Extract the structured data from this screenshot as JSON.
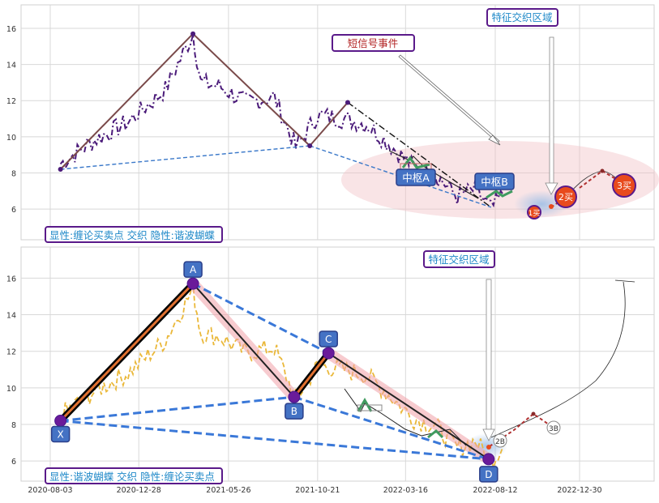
{
  "chart_data": [
    {
      "type": "line",
      "panel": "top",
      "ylim": [
        4.3,
        17.3
      ],
      "yticks": [
        "6",
        "8",
        "10",
        "12",
        "14",
        "16"
      ],
      "grid": true,
      "series": [
        {
          "name": "",
          "style": "dash-dot",
          "color": "#4b1b7a",
          "x": [
            "2020-08-20",
            "2020-10-15",
            "2020-12-10",
            "2021-02-10",
            "2021-03-28",
            "2021-04-10",
            "2021-05-10",
            "2021-06-25",
            "2021-08-10",
            "2021-09-15",
            "2021-10-21",
            "2021-11-30",
            "2022-01-10",
            "2022-02-20",
            "2022-03-30",
            "2022-05-05",
            "2022-06-10",
            "2022-07-10",
            "2022-08-05",
            "2022-08-25"
          ],
          "y": [
            8.5,
            9.8,
            10.8,
            12.6,
            15.7,
            13.0,
            12.8,
            11.9,
            12.2,
            9.4,
            11.2,
            11.0,
            10.7,
            9.5,
            8.3,
            7.9,
            6.7,
            7.1,
            6.0,
            6.8
          ]
        }
      ],
      "pivot_lines": [
        {
          "x": [
            "2020-08-20",
            "2021-03-28"
          ],
          "y": [
            8.2,
            15.7
          ],
          "color": "#7a4a4a",
          "style": "solid"
        },
        {
          "x": [
            "2021-03-28",
            "2021-10-08"
          ],
          "y": [
            15.7,
            9.5
          ],
          "color": "#7a4a4a",
          "style": "solid"
        },
        {
          "x": [
            "2021-10-08",
            "2021-12-10"
          ],
          "y": [
            9.5,
            11.9
          ],
          "color": "#7a4a4a",
          "style": "solid"
        },
        {
          "x": [
            "2021-12-10",
            "2022-08-05"
          ],
          "y": [
            11.9,
            6.1
          ],
          "color": "#111111",
          "style": "dash-dot"
        },
        {
          "x": [
            "2020-08-20",
            "2021-10-08"
          ],
          "y": [
            8.2,
            9.5
          ],
          "color": "#3a78c9",
          "style": "dashed"
        },
        {
          "x": [
            "2021-10-08",
            "2022-08-05"
          ],
          "y": [
            9.5,
            6.1
          ],
          "color": "#3a78c9",
          "style": "dashed"
        }
      ],
      "labels": [
        "中枢A",
        "中枢B",
        "1买",
        "2买",
        "3买"
      ],
      "annotations": [
        "短信号事件",
        "特征交织区域"
      ],
      "caption": "显性:缠论买卖点 交织 隐性:谐波蝴蝶"
    },
    {
      "type": "line",
      "panel": "bottom",
      "ylim": [
        4.9,
        17.7
      ],
      "yticks": [
        "6",
        "8",
        "10",
        "12",
        "14",
        "16"
      ],
      "xtick_labels": [
        "2020-08-03",
        "2020-12-28",
        "2021-05-26",
        "2021-10-21",
        "2022-03-16",
        "2022-08-12",
        "2022-12-30"
      ],
      "grid": true,
      "series": [
        {
          "name": "",
          "style": "dashed",
          "color": "#eab83a",
          "x": [
            "2020-08-20",
            "2020-10-15",
            "2020-12-10",
            "2021-02-10",
            "2021-03-28",
            "2021-04-10",
            "2021-05-10",
            "2021-06-25",
            "2021-08-10",
            "2021-09-15",
            "2021-10-21",
            "2021-11-30",
            "2022-01-10",
            "2022-02-20",
            "2022-03-30",
            "2022-05-05",
            "2022-06-10",
            "2022-07-10",
            "2022-08-05",
            "2022-08-25"
          ],
          "y": [
            8.5,
            9.8,
            10.8,
            12.6,
            15.4,
            13.0,
            12.8,
            11.9,
            12.2,
            9.4,
            11.2,
            11.0,
            10.7,
            9.5,
            8.3,
            7.9,
            6.7,
            7.1,
            6.0,
            6.8
          ]
        }
      ],
      "harmonic_points": [
        {
          "label": "X",
          "x": "2020-08-20",
          "y": 8.2
        },
        {
          "label": "A",
          "x": "2021-03-28",
          "y": 15.7
        },
        {
          "label": "B",
          "x": "2021-09-12",
          "y": 9.5
        },
        {
          "label": "C",
          "x": "2021-11-08",
          "y": 11.9
        },
        {
          "label": "D",
          "x": "2022-08-01",
          "y": 6.1
        }
      ],
      "labels": [
        "2B",
        "3B"
      ],
      "annotations": [
        "特征交织区域"
      ],
      "caption": "显性:谐波蝴蝶 交织 隐性:缠论买卖点"
    }
  ]
}
